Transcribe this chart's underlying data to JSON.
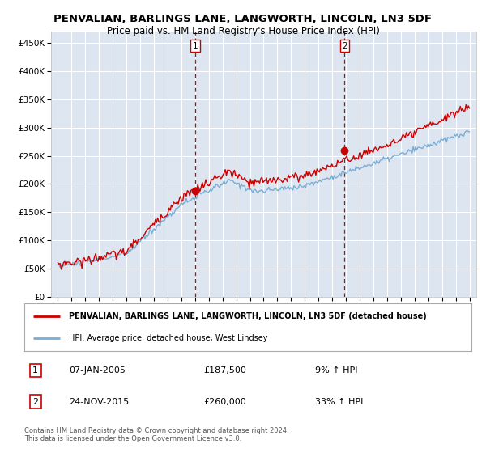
{
  "title": "PENVALIAN, BARLINGS LANE, LANGWORTH, LINCOLN, LN3 5DF",
  "subtitle": "Price paid vs. HM Land Registry's House Price Index (HPI)",
  "ylabel_ticks": [
    "£0",
    "£50K",
    "£100K",
    "£150K",
    "£200K",
    "£250K",
    "£300K",
    "£350K",
    "£400K",
    "£450K"
  ],
  "ytick_values": [
    0,
    50000,
    100000,
    150000,
    200000,
    250000,
    300000,
    350000,
    400000,
    450000
  ],
  "ylim": [
    0,
    470000
  ],
  "xlim_start": 1994.5,
  "xlim_end": 2025.5,
  "sale1_x": 2005.03,
  "sale1_y": 187500,
  "sale2_x": 2015.9,
  "sale2_y": 260000,
  "sale1_label": "07-JAN-2005",
  "sale2_label": "24-NOV-2015",
  "sale1_price": "£187,500",
  "sale2_price": "£260,000",
  "sale1_hpi": "9% ↑ HPI",
  "sale2_hpi": "33% ↑ HPI",
  "legend_line1": "PENVALIAN, BARLINGS LANE, LANGWORTH, LINCOLN, LN3 5DF (detached house)",
  "legend_line2": "HPI: Average price, detached house, West Lindsey",
  "footer1": "Contains HM Land Registry data © Crown copyright and database right 2024.",
  "footer2": "This data is licensed under the Open Government Licence v3.0.",
  "property_color": "#cc0000",
  "hpi_color": "#7aadd4",
  "background_color": "#ffffff",
  "plot_bg_color": "#dde6f0",
  "grid_color": "#ffffff",
  "dashed_line_color": "#cc0000",
  "box_border_color": "#cc0000"
}
